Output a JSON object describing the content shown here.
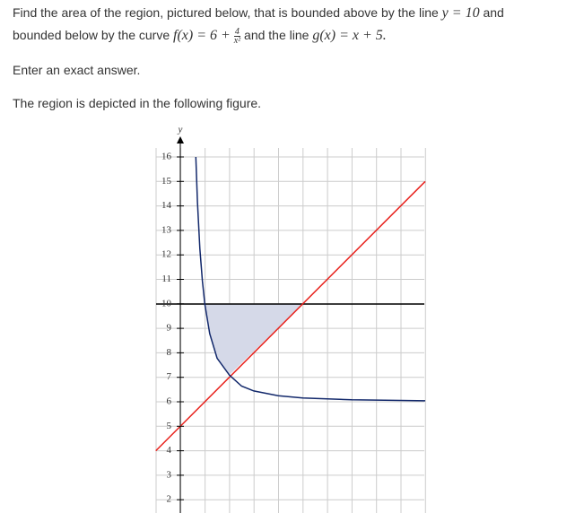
{
  "question": {
    "text1": "Find the area of the region, pictured below, that is bounded above by the line",
    "math1": "y = 10",
    "text2": "and",
    "text3": "bounded below by the curve",
    "math2": "f(x) = 6 +",
    "frac_num": "4",
    "frac_den": "x²",
    "text4": "and the line",
    "math3": "g(x) = x + 5."
  },
  "instruction": "Enter an exact answer.",
  "figure_caption": "The region is depicted in the following figure.",
  "figure": {
    "y_axis_label": "y",
    "yticks": [
      2,
      3,
      4,
      5,
      6,
      7,
      8,
      9,
      10,
      11,
      12,
      13,
      14,
      15,
      16
    ]
  }
}
